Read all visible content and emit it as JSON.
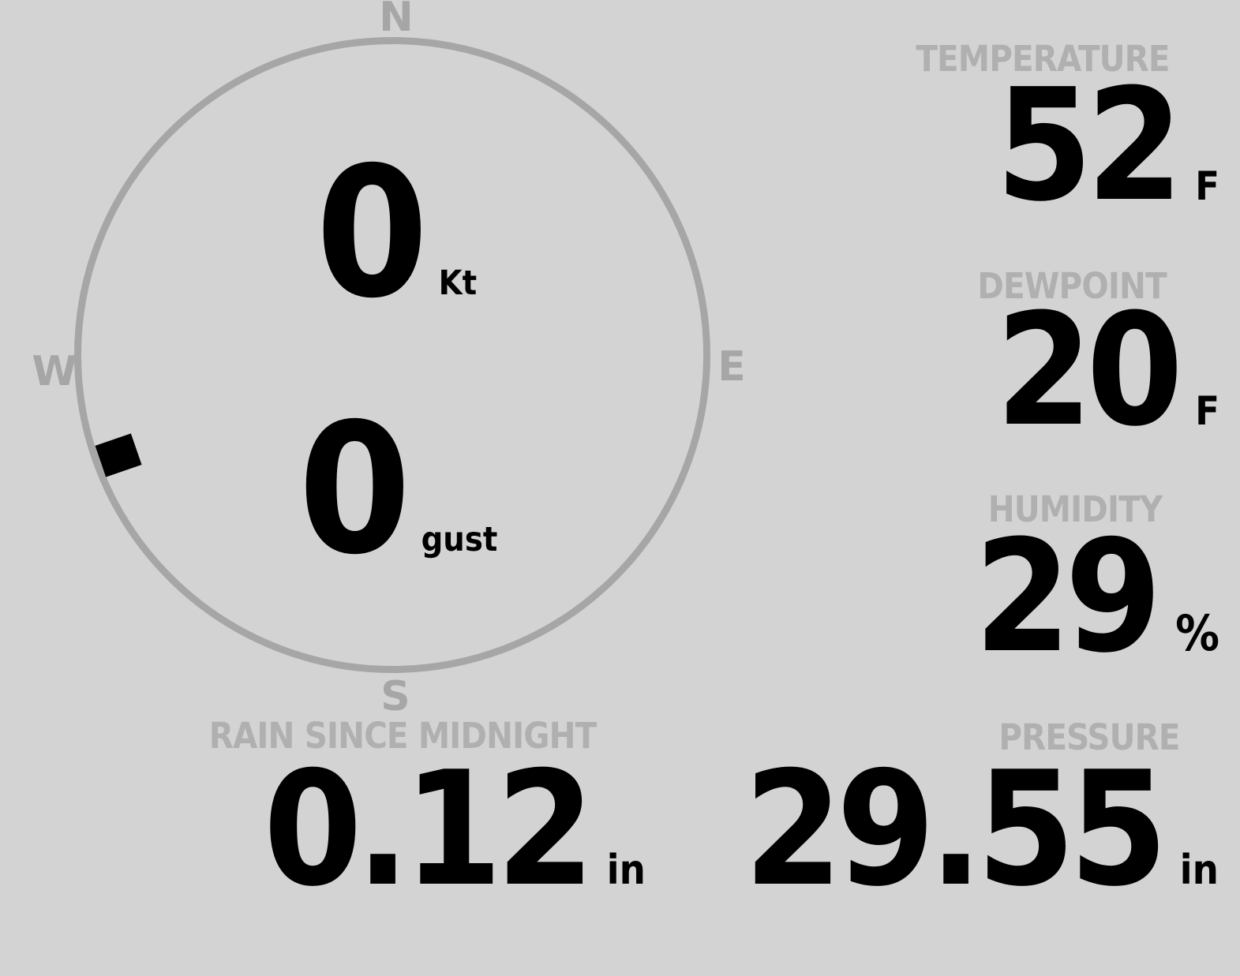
{
  "colors": {
    "background": "#d3d3d3",
    "ring_gray": "#a6a6a6",
    "label_gray": "#b0b0b0",
    "value_black": "#000000",
    "marker_black": "#000000"
  },
  "wind": {
    "compass_labels": {
      "north": "N",
      "east": "E",
      "south": "S",
      "west": "W"
    },
    "direction_degrees": 250,
    "speed": {
      "value": "0",
      "unit": "Kt"
    },
    "gust": {
      "value": "0",
      "unit": "gust"
    }
  },
  "temperature": {
    "label": "TEMPERATURE",
    "value": "52",
    "unit": "F"
  },
  "dewpoint": {
    "label": "DEWPOINT",
    "value": "20",
    "unit": "F"
  },
  "humidity": {
    "label": "HUMIDITY",
    "value": "29",
    "unit": "%"
  },
  "rain_since_midnight": {
    "label": "RAIN SINCE MIDNIGHT",
    "value": "0.12",
    "unit": "in"
  },
  "pressure": {
    "label": "PRESSURE",
    "value": "29.55",
    "unit": "in"
  }
}
